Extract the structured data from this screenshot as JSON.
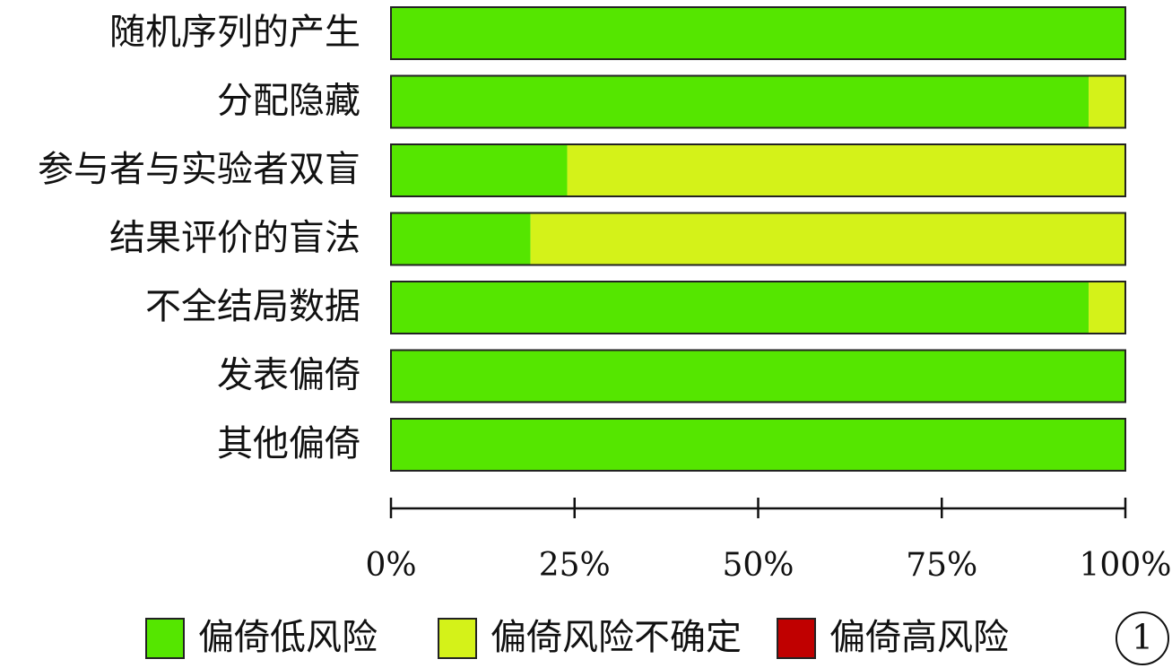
{
  "chart_data": {
    "type": "stacked-bar",
    "orientation": "horizontal",
    "categories": [
      "随机序列的产生",
      "分配隐藏",
      "参与者与实验者双盲",
      "结果评价的盲法",
      "不全结局数据",
      "发表偏倚",
      "其他偏倚"
    ],
    "series": [
      {
        "name": "偏倚低风险",
        "color": "#55e600",
        "values": [
          100,
          95,
          24,
          19,
          95,
          100,
          100
        ]
      },
      {
        "name": "偏倚风险不确定",
        "color": "#d4f219",
        "values": [
          0,
          5,
          76,
          81,
          5,
          0,
          0
        ]
      },
      {
        "name": "偏倚高风险",
        "color": "#c00000",
        "values": [
          0,
          0,
          0,
          0,
          0,
          0,
          0
        ]
      }
    ],
    "xlim": [
      0,
      100
    ],
    "xticks": [
      {
        "value": 0,
        "label": "0%"
      },
      {
        "value": 25,
        "label": "25%"
      },
      {
        "value": 50,
        "label": "50%"
      },
      {
        "value": 75,
        "label": "75%"
      },
      {
        "value": 100,
        "label": "100%"
      }
    ],
    "legend": "bottom",
    "annotation": "1"
  }
}
